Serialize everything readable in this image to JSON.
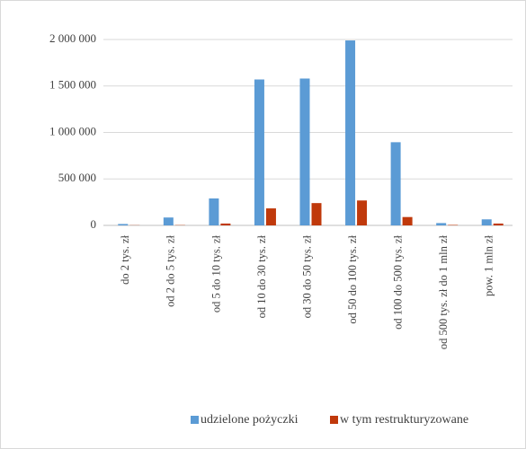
{
  "chart_data": {
    "type": "bar",
    "categories": [
      "do 2 tys. zł",
      "od 2 do 5 tys. zł",
      "od 5 do 10 tys. zł",
      "od 10 do 30 tys. zł",
      "od 30 do 50 tys. zł",
      "od 50 do 100 tys. zł",
      "od 100 do 500 tys. zł",
      "od 500 tys. zł do 1 mln zł",
      "pow. 1 mln zł"
    ],
    "series": [
      {
        "name": "udzielone pożyczki",
        "color": "#5b9bd5",
        "values": [
          15000,
          85000,
          290000,
          1570000,
          1580000,
          1990000,
          895000,
          25000,
          65000
        ]
      },
      {
        "name": "w tym restrukturyzowane",
        "color": "#c0390b",
        "values": [
          2000,
          3000,
          20000,
          183000,
          240000,
          268000,
          90000,
          5000,
          20000
        ]
      }
    ],
    "ylim": [
      0,
      2000000
    ],
    "yticks": [
      0,
      {
        "value": 500000,
        "label": "500 000"
      },
      {
        "value": 1000000,
        "label": "1 000 000"
      },
      {
        "value": 1500000,
        "label": "1 500 000"
      },
      {
        "value": 2000000,
        "label": "2 000 000"
      }
    ],
    "grid": true,
    "legend": "bottom"
  }
}
